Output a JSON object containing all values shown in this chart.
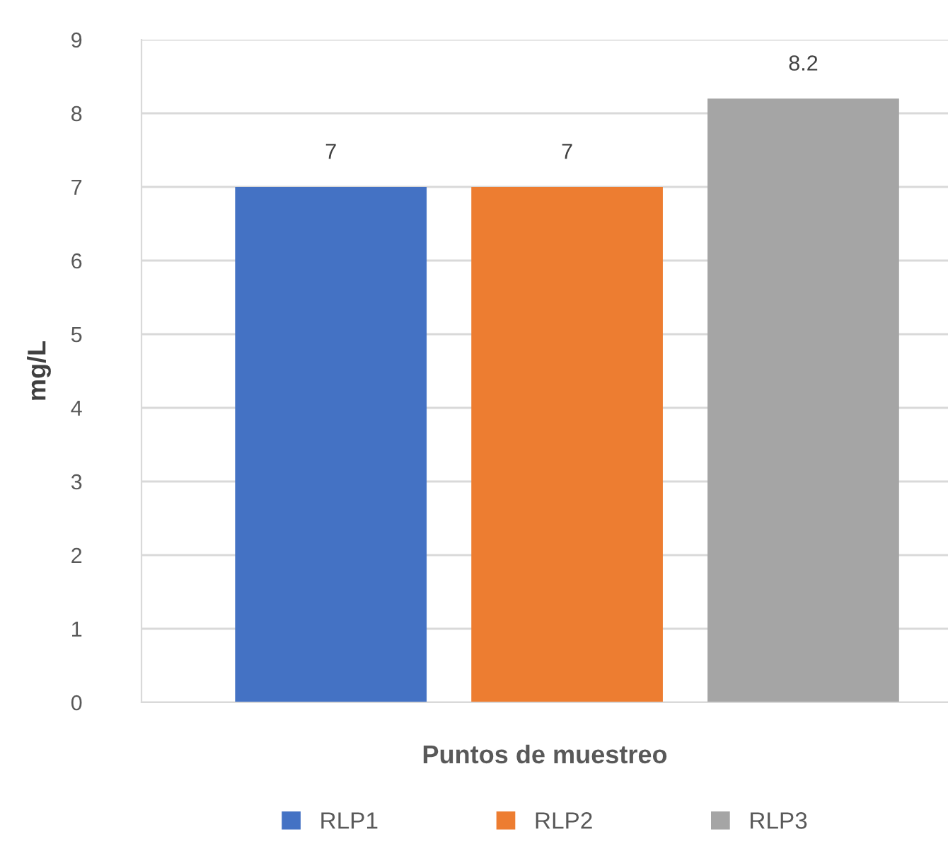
{
  "chart_data": {
    "type": "bar",
    "xlabel": "Puntos de muestreo",
    "ylabel": "mg/L",
    "categories": [
      null
    ],
    "series": [
      {
        "name": "RLP1",
        "color": "#4472c4",
        "values": [
          7
        ]
      },
      {
        "name": "RLP2",
        "color": "#ed7d31",
        "values": [
          7
        ]
      },
      {
        "name": "RLP3",
        "color": "#a5a5a5",
        "values": [
          8.2
        ]
      }
    ],
    "ylim": [
      0,
      9
    ],
    "yticks": [
      0,
      1,
      2,
      3,
      4,
      5,
      6,
      7,
      8,
      9
    ],
    "grid": "y",
    "data_labels": true,
    "legend": "bottom"
  }
}
